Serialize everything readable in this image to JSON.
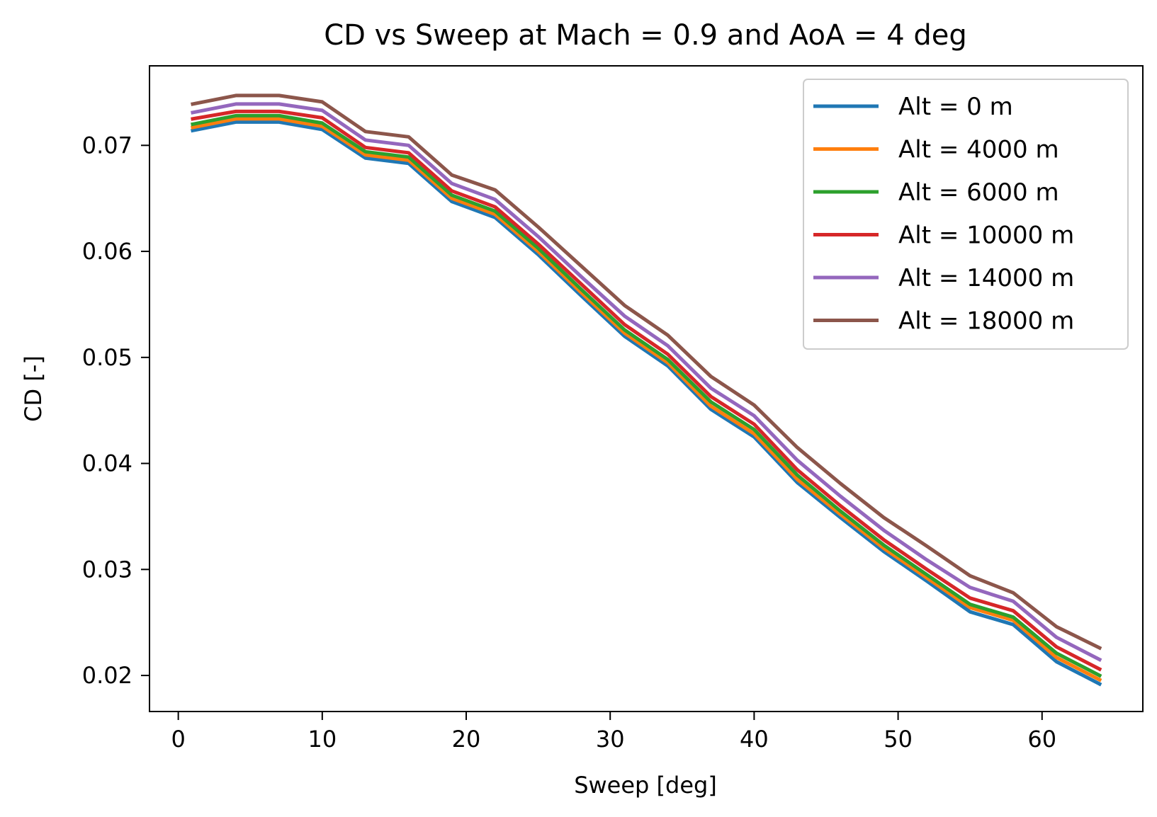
{
  "chart_data": {
    "type": "line",
    "title": "CD vs Sweep at Mach = 0.9 and AoA = 4 deg",
    "xlabel": "Sweep [deg]",
    "ylabel": "CD [-]",
    "xlim": [
      -2,
      67
    ],
    "ylim": [
      0.0166,
      0.0775
    ],
    "xticks": [
      0,
      10,
      20,
      30,
      40,
      50,
      60
    ],
    "xtick_labels": [
      "0",
      "10",
      "20",
      "30",
      "40",
      "50",
      "60"
    ],
    "yticks": [
      0.02,
      0.03,
      0.04,
      0.05,
      0.06,
      0.07
    ],
    "ytick_labels": [
      "0.02",
      "0.03",
      "0.04",
      "0.05",
      "0.06",
      "0.07"
    ],
    "grid": false,
    "legend_position": "top-right",
    "x": [
      1,
      4,
      7,
      10,
      13,
      16,
      19,
      22,
      25,
      28,
      31,
      34,
      37,
      40,
      43,
      46,
      49,
      52,
      55,
      58,
      61,
      64
    ],
    "series": [
      {
        "name": "Alt = 0 m",
        "color": "#1f77b4",
        "values": [
          0.0714,
          0.0722,
          0.0722,
          0.0715,
          0.0688,
          0.0683,
          0.0647,
          0.0632,
          0.0597,
          0.0558,
          0.052,
          0.0492,
          0.0451,
          0.0425,
          0.0382,
          0.0349,
          0.0317,
          0.0289,
          0.026,
          0.0248,
          0.0213,
          0.0192
        ]
      },
      {
        "name": "Alt = 4000 m",
        "color": "#ff7f0e",
        "values": [
          0.0717,
          0.0725,
          0.0725,
          0.0718,
          0.0691,
          0.0686,
          0.065,
          0.0635,
          0.06,
          0.0561,
          0.0523,
          0.0495,
          0.0454,
          0.0428,
          0.0385,
          0.0352,
          0.032,
          0.0292,
          0.0264,
          0.0252,
          0.0217,
          0.0196
        ]
      },
      {
        "name": "Alt = 6000 m",
        "color": "#2ca02c",
        "values": [
          0.072,
          0.0728,
          0.0728,
          0.0721,
          0.0694,
          0.0689,
          0.0653,
          0.0638,
          0.0603,
          0.0564,
          0.0526,
          0.0498,
          0.0458,
          0.0432,
          0.0389,
          0.0355,
          0.0323,
          0.0295,
          0.0267,
          0.0255,
          0.0221,
          0.02
        ]
      },
      {
        "name": "Alt = 10000 m",
        "color": "#d62728",
        "values": [
          0.0725,
          0.0732,
          0.0732,
          0.0726,
          0.0698,
          0.0693,
          0.0657,
          0.0642,
          0.0607,
          0.0569,
          0.0531,
          0.0503,
          0.0463,
          0.0437,
          0.0394,
          0.036,
          0.0328,
          0.03,
          0.0273,
          0.0261,
          0.0227,
          0.0206
        ]
      },
      {
        "name": "Alt = 14000 m",
        "color": "#9467bd",
        "values": [
          0.0731,
          0.0739,
          0.0739,
          0.0733,
          0.0705,
          0.07,
          0.0664,
          0.0649,
          0.0614,
          0.0576,
          0.0539,
          0.0511,
          0.0471,
          0.0445,
          0.0403,
          0.0369,
          0.0337,
          0.0309,
          0.0283,
          0.027,
          0.0236,
          0.0215
        ]
      },
      {
        "name": "Alt = 18000 m",
        "color": "#8c564b",
        "values": [
          0.0739,
          0.0747,
          0.0747,
          0.0741,
          0.0713,
          0.0708,
          0.0672,
          0.0658,
          0.0623,
          0.0586,
          0.0549,
          0.0521,
          0.0482,
          0.0455,
          0.0415,
          0.0381,
          0.0349,
          0.0322,
          0.0294,
          0.0278,
          0.0246,
          0.0226
        ]
      }
    ]
  }
}
